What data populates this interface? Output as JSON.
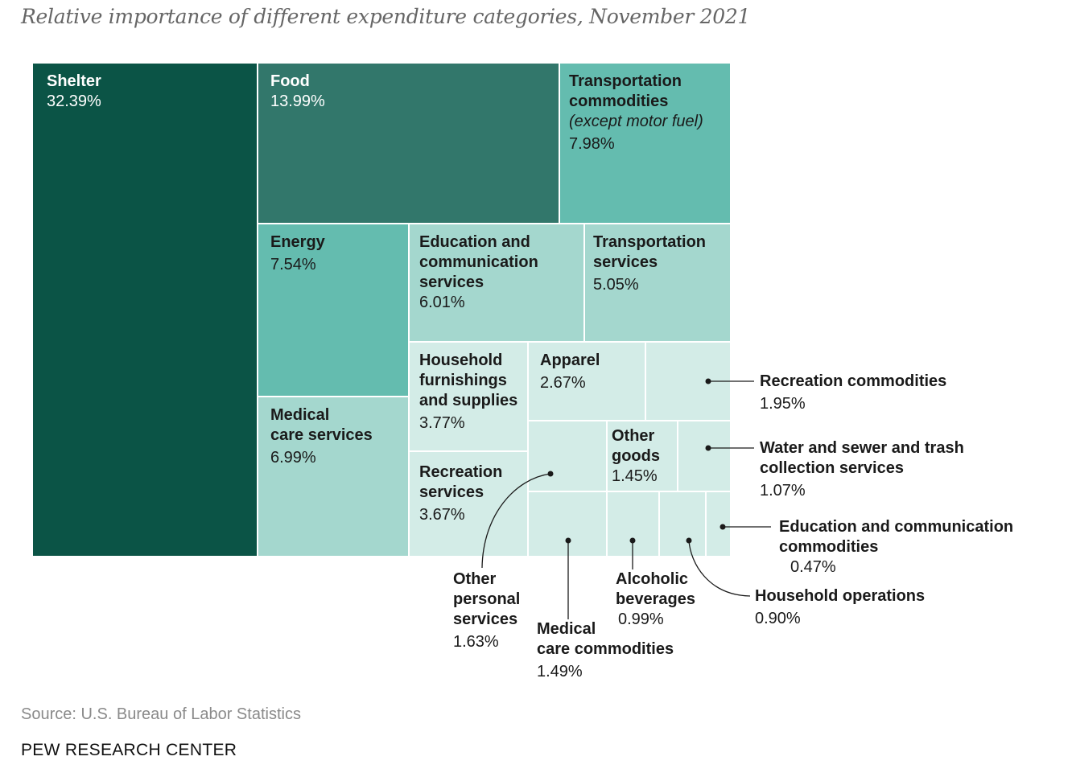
{
  "chart_data": {
    "type": "treemap",
    "title": "Relative importance of different expenditure categories, November 2021",
    "unit": "%",
    "items": [
      {
        "id": "shelter",
        "name": "Shelter",
        "value": 32.39,
        "value_label": "32.39%",
        "color": "#0b5446"
      },
      {
        "id": "food",
        "name": "Food",
        "value": 13.99,
        "value_label": "13.99%",
        "color": "#32776b"
      },
      {
        "id": "transportation-commodities",
        "name": "Transportation commodities",
        "note": "(except motor fuel)",
        "value": 7.98,
        "value_label": "7.98%",
        "color": "#64bcaf"
      },
      {
        "id": "energy",
        "name": "Energy",
        "value": 7.54,
        "value_label": "7.54%",
        "color": "#64bcaf"
      },
      {
        "id": "medical-care-services",
        "name": "Medical care services",
        "value": 6.99,
        "value_label": "6.99%",
        "color": "#a4d7ce"
      },
      {
        "id": "education-communication-services",
        "name": "Education and communication services",
        "value": 6.01,
        "value_label": "6.01%",
        "color": "#a4d7ce"
      },
      {
        "id": "transportation-services",
        "name": "Transportation services",
        "value": 5.05,
        "value_label": "5.05%",
        "color": "#a4d7ce"
      },
      {
        "id": "household-furnishings",
        "name": "Household furnishings and supplies",
        "value": 3.77,
        "value_label": "3.77%",
        "color": "#d3ece7"
      },
      {
        "id": "recreation-services",
        "name": "Recreation services",
        "value": 3.67,
        "value_label": "3.67%",
        "color": "#d3ece7"
      },
      {
        "id": "apparel",
        "name": "Apparel",
        "value": 2.67,
        "value_label": "2.67%",
        "color": "#d3ece7"
      },
      {
        "id": "recreation-commodities",
        "name": "Recreation commodities",
        "value": 1.95,
        "value_label": "1.95%",
        "color": "#d3ece7"
      },
      {
        "id": "other-personal-services",
        "name": "Other personal services",
        "value": 1.63,
        "value_label": "1.63%",
        "color": "#d3ece7"
      },
      {
        "id": "medical-care-commodities",
        "name": "Medical care commodities",
        "value": 1.49,
        "value_label": "1.49%",
        "color": "#d3ece7"
      },
      {
        "id": "other-goods",
        "name": "Other goods",
        "value": 1.45,
        "value_label": "1.45%",
        "color": "#d3ece7"
      },
      {
        "id": "water-sewer-trash",
        "name": "Water and sewer and trash collection services",
        "value": 1.07,
        "value_label": "1.07%",
        "color": "#d3ece7"
      },
      {
        "id": "alcoholic-beverages",
        "name": "Alcoholic beverages",
        "value": 0.99,
        "value_label": "0.99%",
        "color": "#d3ece7"
      },
      {
        "id": "household-operations",
        "name": "Household operations",
        "value": 0.9,
        "value_label": "0.90%",
        "color": "#d3ece7"
      },
      {
        "id": "education-communication-commodities",
        "name": "Education and communication commodities",
        "value": 0.47,
        "value_label": "0.47%",
        "color": "#d3ece7"
      }
    ]
  },
  "labels": {
    "shelter": {
      "lines": [
        "Shelter"
      ]
    },
    "food": {
      "lines": [
        "Food"
      ]
    },
    "transportation_commodities": {
      "lines": [
        "Transportation",
        "commodities"
      ],
      "note": "(except motor fuel)"
    },
    "energy": {
      "lines": [
        "Energy"
      ]
    },
    "medical_care_services": {
      "lines": [
        "Medical",
        "care services"
      ]
    },
    "education_communication_services": {
      "lines": [
        "Education and",
        "communication",
        "services"
      ]
    },
    "transportation_services": {
      "lines": [
        "Transportation",
        "services"
      ]
    },
    "household_furnishings": {
      "lines": [
        "Household",
        "furnishings",
        "and supplies"
      ]
    },
    "recreation_services": {
      "lines": [
        "Recreation",
        "services"
      ]
    },
    "apparel": {
      "lines": [
        "Apparel"
      ]
    },
    "other_goods": {
      "lines": [
        "Other",
        "goods"
      ]
    },
    "recreation_commodities": {
      "lines": [
        "Recreation commodities"
      ]
    },
    "water_sewer_trash": {
      "lines": [
        "Water and sewer and trash",
        "collection services"
      ]
    },
    "education_communication_commodities": {
      "lines": [
        "Education and communication",
        "commodities"
      ]
    },
    "household_operations": {
      "lines": [
        "Household operations"
      ]
    },
    "alcoholic_beverages": {
      "lines": [
        "Alcoholic",
        "beverages"
      ]
    },
    "medical_care_commodities": {
      "lines": [
        "Medical",
        "care commodities"
      ]
    },
    "other_personal_services": {
      "lines": [
        "Other",
        "personal",
        "services"
      ]
    }
  },
  "source": "Source: U.S. Bureau of Labor Statistics",
  "brand": "PEW RESEARCH CENTER"
}
